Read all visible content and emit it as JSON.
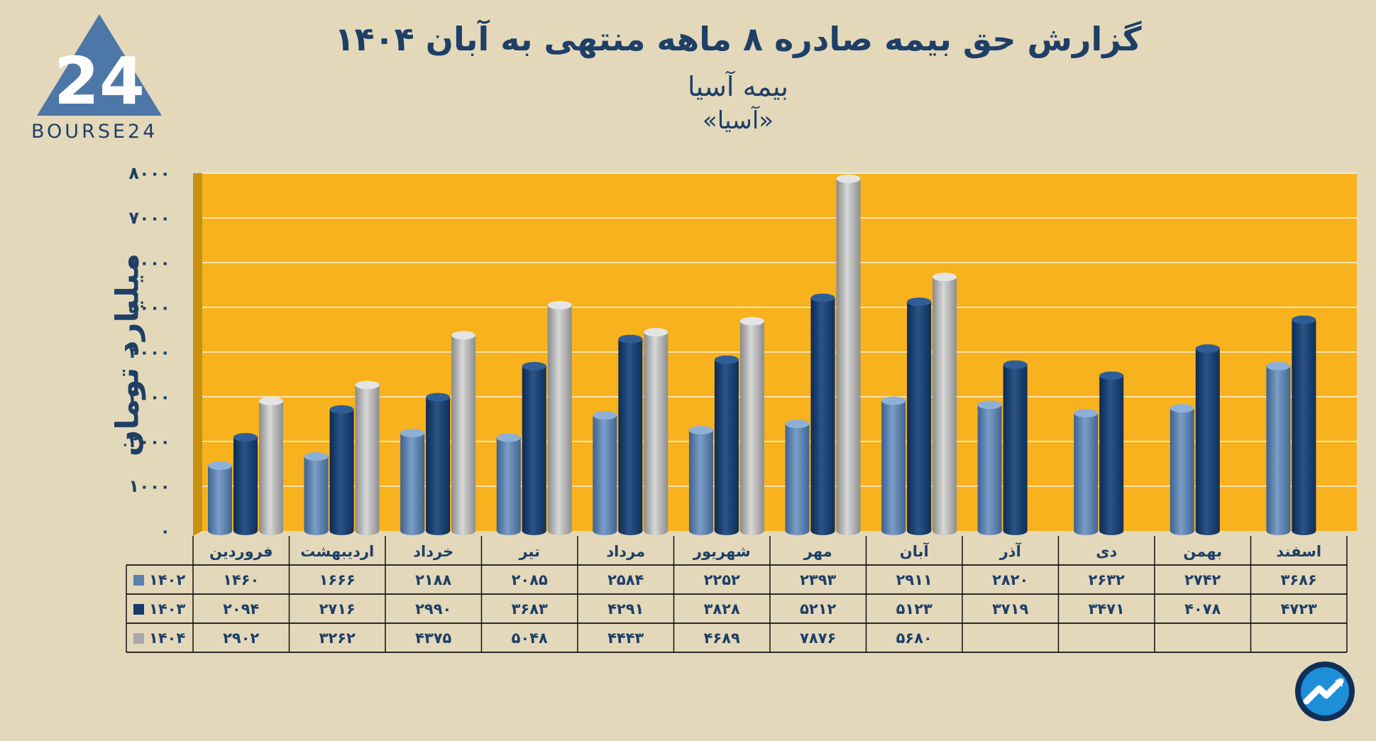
{
  "header": {
    "title": "گزارش  حق بیمه صادره ۸ ماهه منتهی به آبان ۱۴۰۴",
    "subtitle": "بیمه آسیا",
    "ticker": "«آسیا»",
    "brand": "BOURSE24"
  },
  "chart_data": {
    "type": "bar",
    "ylabel": "میلیارد تومان",
    "ylim": [
      0,
      8000
    ],
    "y_ticks": [
      "۰",
      "۱۰۰۰",
      "۲۰۰۰",
      "۳۰۰۰",
      "۴۰۰۰",
      "۵۰۰۰",
      "۶۰۰۰",
      "۷۰۰۰",
      "۸۰۰۰"
    ],
    "categories": [
      "فروردین",
      "اردیبهشت",
      "خرداد",
      "تیر",
      "مرداد",
      "شهریور",
      "مهر",
      "آبان",
      "آذر",
      "دی",
      "بهمن",
      "اسفند"
    ],
    "series": [
      {
        "name": "۱۴۰۲",
        "color": "#5a80b0",
        "values": [
          1460,
          1666,
          2188,
          2085,
          2584,
          2252,
          2393,
          2911,
          2820,
          2632,
          2742,
          3686
        ],
        "labels": [
          "۱۴۶۰",
          "۱۶۶۶",
          "۲۱۸۸",
          "۲۰۸۵",
          "۲۵۸۴",
          "۲۲۵۲",
          "۲۳۹۳",
          "۲۹۱۱",
          "۲۸۲۰",
          "۲۶۳۲",
          "۲۷۴۲",
          "۳۶۸۶"
        ]
      },
      {
        "name": "۱۴۰۳",
        "color": "#163c6c",
        "values": [
          2094,
          2716,
          2990,
          3683,
          4291,
          3828,
          5212,
          5123,
          3719,
          3471,
          4078,
          4723
        ],
        "labels": [
          "۲۰۹۴",
          "۲۷۱۶",
          "۲۹۹۰",
          "۳۶۸۳",
          "۴۲۹۱",
          "۳۸۲۸",
          "۵۲۱۲",
          "۵۱۲۳",
          "۳۷۱۹",
          "۳۴۷۱",
          "۴۰۷۸",
          "۴۷۲۳"
        ]
      },
      {
        "name": "۱۴۰۴",
        "color": "#a9a9a9",
        "values": [
          2902,
          3262,
          4375,
          5048,
          4443,
          4689,
          7876,
          5680,
          null,
          null,
          null,
          null
        ],
        "labels": [
          "۲۹۰۲",
          "۳۲۶۲",
          "۴۳۷۵",
          "۵۰۴۸",
          "۴۴۴۳",
          "۴۶۸۹",
          "۷۸۷۶",
          "۵۶۸۰",
          "",
          "",
          "",
          ""
        ]
      }
    ],
    "grid": true,
    "legend": "table-left",
    "plot_background": "#f7b21e"
  }
}
